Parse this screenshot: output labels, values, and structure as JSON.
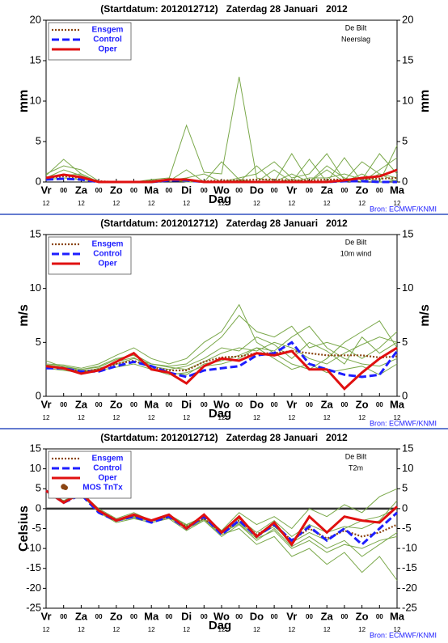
{
  "chart_data": [
    {
      "type": "line",
      "title": "(Startdatum: 2012012712)   Zaterdag 28 Januari   2012",
      "location": "De Bilt",
      "variable": "Neerslag",
      "ylabel": "mm",
      "right_axis_label": true,
      "xlabel": "Dag",
      "source": "Bron: ECMWF/KNMI",
      "categories": [
        "Vr",
        "00",
        "Za",
        "00",
        "Zo",
        "00",
        "Ma",
        "00",
        "Di",
        "00",
        "Wo",
        "00",
        "Do",
        "00",
        "Vr",
        "00",
        "Za",
        "00",
        "Zo",
        "00",
        "Ma"
      ],
      "hour_labels": [
        "12",
        "12",
        "12",
        "12",
        "12",
        "12",
        "12",
        "12",
        "12",
        "12",
        "12"
      ],
      "ylim": [
        0,
        20
      ],
      "yticks": [
        0,
        5,
        10,
        15,
        20
      ],
      "zero_line": false,
      "series": [
        {
          "name": "Ensgem",
          "color": "#8b4513",
          "dash": "dotted",
          "values": [
            0.5,
            0.7,
            0.5,
            0.1,
            0,
            0,
            0.1,
            0.3,
            0.2,
            0.1,
            0.2,
            0.2,
            0.3,
            0.3,
            0.2,
            0.2,
            0.3,
            0.3,
            0.4,
            0.4,
            0.5
          ]
        },
        {
          "name": "Control",
          "color": "#1e1eff",
          "dash": "dashed",
          "values": [
            0.3,
            0.4,
            0.3,
            0,
            0,
            0,
            0,
            0.2,
            0.2,
            0,
            0,
            0,
            0,
            0,
            0,
            0,
            0,
            0.1,
            0.1,
            0,
            0
          ]
        },
        {
          "name": "Oper",
          "color": "#e01010",
          "dash": "solid",
          "values": [
            0.5,
            0.9,
            0.6,
            0,
            0,
            0,
            0,
            0.3,
            0.3,
            0,
            0,
            0,
            0,
            0,
            0,
            0,
            0,
            0.2,
            0.5,
            0.7,
            1.5
          ]
        }
      ],
      "members": {
        "color": "#7aa84a",
        "values": [
          [
            0.8,
            2.8,
            1,
            0,
            0,
            0,
            0,
            0.2,
            0.5,
            1,
            0,
            0,
            0,
            0,
            1,
            0,
            2,
            0.5,
            0,
            1.5,
            3
          ],
          [
            0.5,
            1.5,
            0.8,
            0,
            0,
            0,
            0.1,
            0.4,
            7,
            1.2,
            1,
            13,
            0.5,
            0,
            0.3,
            0,
            0,
            3,
            0,
            1,
            0
          ],
          [
            1,
            2,
            1.5,
            0.1,
            0,
            0,
            0.3,
            0.5,
            0,
            0,
            0,
            0.5,
            1,
            2.5,
            0.5,
            1,
            3.5,
            0.2,
            2.5,
            1,
            0.5
          ],
          [
            0.4,
            1,
            0.5,
            0,
            0,
            0,
            0,
            0.2,
            0.3,
            0,
            2.5,
            0.3,
            0,
            1.5,
            0,
            0.5,
            0.5,
            1,
            0.3,
            3.5,
            1
          ],
          [
            0.6,
            0.8,
            1,
            0,
            0,
            0,
            0.2,
            0.3,
            0,
            0,
            0,
            0.2,
            0,
            0,
            3.5,
            0,
            1.5,
            0,
            0.5,
            0,
            4.5
          ],
          [
            0.3,
            0.5,
            0.3,
            0,
            0,
            0,
            0,
            0.1,
            1.5,
            0,
            0,
            0,
            2,
            0,
            0,
            2.8,
            0,
            0,
            1,
            0,
            0.2
          ]
        ]
      }
    },
    {
      "type": "line",
      "title": "(Startdatum: 2012012712)   Zaterdag 28 Januari   2012",
      "location": "De Bilt",
      "variable": "10m wind",
      "ylabel": "m/s",
      "right_axis_label": true,
      "xlabel": "Dag",
      "source": "Bron: ECMWF/KNMI",
      "categories": [
        "Vr",
        "00",
        "Za",
        "00",
        "Zo",
        "00",
        "Ma",
        "00",
        "Di",
        "00",
        "Wo",
        "00",
        "Do",
        "00",
        "Vr",
        "00",
        "Za",
        "00",
        "Zo",
        "00",
        "Ma"
      ],
      "hour_labels": [
        "12",
        "12",
        "12",
        "12",
        "12",
        "12",
        "12",
        "12",
        "12",
        "12",
        "12"
      ],
      "ylim": [
        0,
        15
      ],
      "yticks": [
        0,
        5,
        10,
        15
      ],
      "zero_line": false,
      "series": [
        {
          "name": "Ensgem",
          "color": "#8b4513",
          "dash": "dotted",
          "values": [
            2.8,
            2.6,
            2.3,
            2.5,
            3,
            3.3,
            2.7,
            2.4,
            2.4,
            3.2,
            3.6,
            3.7,
            4,
            4,
            4.2,
            4,
            3.8,
            3.8,
            3.8,
            3.6,
            3.7
          ]
        },
        {
          "name": "Control",
          "color": "#1e1eff",
          "dash": "dashed",
          "values": [
            2.6,
            2.6,
            2.3,
            2.3,
            2.8,
            3.2,
            2.8,
            2.2,
            1.8,
            2.4,
            2.6,
            2.8,
            3.8,
            4,
            5,
            3,
            2.5,
            2,
            1.8,
            2,
            4.2
          ]
        },
        {
          "name": "Oper",
          "color": "#e01010",
          "dash": "solid",
          "values": [
            2.8,
            2.6,
            2.1,
            2.4,
            3.2,
            4,
            2.5,
            2.2,
            1.2,
            2.8,
            3.5,
            3.3,
            4,
            3.8,
            4.2,
            2.5,
            2.5,
            0.7,
            2.2,
            3.5,
            4.5
          ]
        }
      ],
      "members": {
        "color": "#7aa84a",
        "values": [
          [
            3.3,
            2.7,
            2.5,
            2.8,
            3.5,
            3.8,
            2.8,
            2.5,
            2.8,
            3.5,
            4.5,
            4.2,
            5.5,
            4.8,
            3.5,
            5,
            4.2,
            3,
            5.5,
            4,
            5
          ],
          [
            2.6,
            2.4,
            2.2,
            2.6,
            3,
            3.5,
            3,
            2.8,
            3,
            4.2,
            5.5,
            7.5,
            6,
            5.5,
            6.5,
            4.5,
            5,
            4.5,
            3.5,
            4.5,
            6
          ],
          [
            2.8,
            2.5,
            2.3,
            2.4,
            2.7,
            3,
            2.5,
            2,
            2.2,
            2.8,
            3,
            3.5,
            4.5,
            3.5,
            2.5,
            3,
            2.2,
            2.5,
            2.8,
            2,
            3
          ],
          [
            3,
            2.9,
            2.6,
            3,
            3.8,
            4.5,
            3.5,
            3,
            3.5,
            5,
            6,
            8.5,
            5,
            4,
            3,
            2.5,
            3.5,
            5,
            6,
            7,
            4.5
          ],
          [
            2.7,
            2.6,
            2.4,
            2.5,
            3.2,
            3.6,
            2.6,
            2.2,
            2,
            3,
            3.3,
            3.8,
            4.5,
            4.2,
            5.5,
            6.5,
            4.5,
            3.5,
            3,
            2.8,
            3.5
          ],
          [
            2.9,
            2.8,
            2.5,
            2.7,
            3.4,
            3.9,
            3,
            2.7,
            2.5,
            3.2,
            4,
            4.5,
            4.2,
            5,
            4.5,
            3.5,
            3,
            4,
            4.8,
            5.5,
            5
          ]
        ]
      }
    },
    {
      "type": "line",
      "title": "(Startdatum: 2012012712)   Zaterdag 28 Januari   2012",
      "location": "De Bilt",
      "variable": "T2m",
      "ylabel": "Celsius",
      "right_axis_label": false,
      "xlabel": "Dag",
      "source": "Bron: ECMWF/KNMI",
      "categories": [
        "Vr",
        "00",
        "Za",
        "00",
        "Zo",
        "00",
        "Ma",
        "00",
        "Di",
        "00",
        "Wo",
        "00",
        "Do",
        "00",
        "Vr",
        "00",
        "Za",
        "00",
        "Zo",
        "00",
        "Ma"
      ],
      "hour_labels": [
        "12",
        "12",
        "12",
        "12",
        "12",
        "12",
        "12",
        "12",
        "12",
        "12",
        "12"
      ],
      "ylim": [
        -25,
        15
      ],
      "yticks": [
        -25,
        -20,
        -15,
        -10,
        -5,
        0,
        5,
        10,
        15
      ],
      "zero_line": true,
      "series": [
        {
          "name": "Ensgem",
          "color": "#8b4513",
          "dash": "dotted",
          "values": [
            4.5,
            1.8,
            3.8,
            -0.5,
            -2.8,
            -1.8,
            -3,
            -2,
            -4.5,
            -2.5,
            -6,
            -3,
            -6.5,
            -4,
            -8,
            -5,
            -7.5,
            -5.5,
            -7,
            -6,
            -4
          ]
        },
        {
          "name": "Control",
          "color": "#1e1eff",
          "dash": "dashed",
          "values": [
            4.5,
            1.5,
            3.5,
            -1,
            -3,
            -2,
            -3.5,
            -2,
            -5,
            -2,
            -6.5,
            -3,
            -7,
            -4,
            -8,
            -4.5,
            -8,
            -5,
            -9,
            -5,
            -1
          ]
        },
        {
          "name": "Oper",
          "color": "#e01010",
          "dash": "solid",
          "values": [
            4.5,
            1.5,
            4,
            -0.5,
            -3,
            -1.5,
            -3,
            -1.5,
            -5,
            -1.5,
            -6,
            -2,
            -7,
            -3.5,
            -9,
            -2,
            -6,
            -2,
            -3,
            -3.5,
            0.5
          ]
        }
      ],
      "mos": {
        "name": "MOS TnTx",
        "color": "#8b4513",
        "x": [
          1
        ],
        "values": [
          5.5
        ]
      },
      "members": {
        "color": "#7aa84a",
        "values": [
          [
            4.5,
            2,
            4,
            0,
            -2.5,
            -1,
            -3,
            -1.5,
            -4,
            -2,
            -5.5,
            -2.5,
            -6,
            -3,
            -7,
            -4,
            -6,
            -4.5,
            -5,
            -3,
            2
          ],
          [
            4.5,
            1.5,
            3.5,
            -1,
            -3.5,
            -2.5,
            -3.5,
            -2.5,
            -5.5,
            -3,
            -7,
            -4,
            -8,
            -5,
            -9.5,
            -7,
            -10,
            -8,
            -12,
            -9,
            -6
          ],
          [
            4.5,
            1.8,
            4,
            -0.5,
            -3,
            -2,
            -3,
            -2,
            -4.5,
            -2.5,
            -6,
            -3.5,
            -7,
            -4.5,
            -8.5,
            -6,
            -8,
            -5,
            -3,
            -2,
            0
          ],
          [
            4.5,
            1.6,
            3.8,
            -0.8,
            -3.2,
            -2.2,
            -3.2,
            -2.2,
            -5,
            -3,
            -6.5,
            -5,
            -9,
            -7,
            -12,
            -10,
            -14,
            -11,
            -16,
            -12,
            -18
          ],
          [
            4.5,
            1.7,
            3.9,
            -0.3,
            -2.8,
            -1.8,
            -2.8,
            -1.5,
            -4.2,
            -1.8,
            -5.5,
            -1,
            -4,
            -2,
            -5,
            0,
            -2,
            1,
            -1,
            3,
            5
          ],
          [
            4.5,
            1.5,
            3.6,
            -0.7,
            -3.1,
            -2.1,
            -3.1,
            -1.9,
            -4.7,
            -2.7,
            -6.2,
            -3.8,
            -7.5,
            -5.5,
            -10,
            -8,
            -11,
            -9,
            -10,
            -8,
            -7
          ]
        ]
      }
    }
  ]
}
